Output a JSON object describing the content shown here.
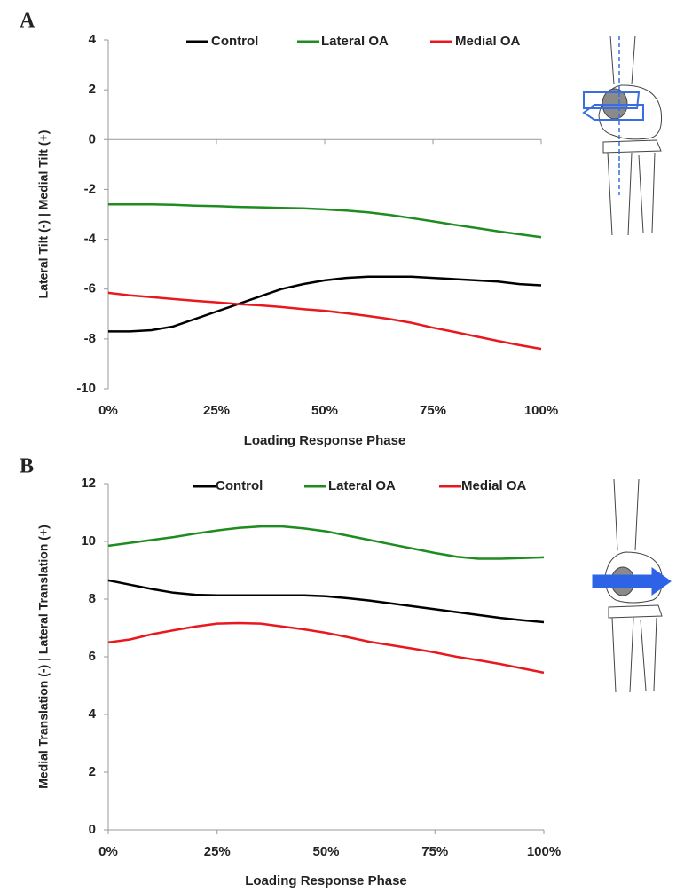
{
  "chart_data": [
    {
      "type": "line",
      "panel_label": "A",
      "x_label": "Loading Response Phase",
      "y_label": "Lateral Tilt (-) | Medial Tilt (+)",
      "x": [
        0,
        5,
        10,
        15,
        20,
        25,
        30,
        35,
        40,
        45,
        50,
        55,
        60,
        65,
        70,
        75,
        80,
        85,
        90,
        95,
        100
      ],
      "xlim": [
        0,
        100
      ],
      "xticks": [
        {
          "value": 0,
          "label": "0%"
        },
        {
          "value": 25,
          "label": "25%"
        },
        {
          "value": 50,
          "label": "50%"
        },
        {
          "value": 75,
          "label": "75%"
        },
        {
          "value": 100,
          "label": "100%"
        }
      ],
      "ylim": [
        -10,
        4
      ],
      "yticks": [
        -10,
        -8,
        -6,
        -4,
        -2,
        0,
        2,
        4
      ],
      "series": [
        {
          "name": "Control",
          "color": "#000000",
          "values": [
            -7.7,
            -7.7,
            -7.65,
            -7.5,
            -7.2,
            -6.9,
            -6.6,
            -6.3,
            -6.0,
            -5.8,
            -5.65,
            -5.55,
            -5.5,
            -5.5,
            -5.5,
            -5.55,
            -5.6,
            -5.65,
            -5.7,
            -5.8,
            -5.85
          ]
        },
        {
          "name": "Lateral OA",
          "color": "#1e8c1e",
          "values": [
            -2.6,
            -2.6,
            -2.6,
            -2.62,
            -2.65,
            -2.67,
            -2.7,
            -2.72,
            -2.74,
            -2.76,
            -2.8,
            -2.85,
            -2.92,
            -3.02,
            -3.15,
            -3.28,
            -3.42,
            -3.55,
            -3.68,
            -3.8,
            -3.92
          ]
        },
        {
          "name": "Medial OA",
          "color": "#e8191e",
          "values": [
            -6.15,
            -6.25,
            -6.32,
            -6.4,
            -6.47,
            -6.53,
            -6.6,
            -6.65,
            -6.72,
            -6.8,
            -6.87,
            -6.97,
            -7.08,
            -7.2,
            -7.35,
            -7.55,
            -7.72,
            -7.9,
            -8.08,
            -8.25,
            -8.4
          ]
        }
      ]
    },
    {
      "type": "line",
      "panel_label": "B",
      "x_label": "Loading Response Phase",
      "y_label": "Medial Translation (-) | Lateral Translation (+)",
      "x": [
        0,
        5,
        10,
        15,
        20,
        25,
        30,
        35,
        40,
        45,
        50,
        55,
        60,
        65,
        70,
        75,
        80,
        85,
        90,
        95,
        100
      ],
      "xlim": [
        0,
        100
      ],
      "xticks": [
        {
          "value": 0,
          "label": "0%"
        },
        {
          "value": 25,
          "label": "25%"
        },
        {
          "value": 50,
          "label": "50%"
        },
        {
          "value": 75,
          "label": "75%"
        },
        {
          "value": 100,
          "label": "100%"
        }
      ],
      "ylim": [
        0,
        12
      ],
      "yticks": [
        0,
        2,
        4,
        6,
        8,
        10,
        12
      ],
      "series": [
        {
          "name": "Control",
          "color": "#000000",
          "values": [
            8.65,
            8.5,
            8.35,
            8.22,
            8.15,
            8.13,
            8.13,
            8.13,
            8.13,
            8.13,
            8.1,
            8.03,
            7.95,
            7.85,
            7.75,
            7.65,
            7.55,
            7.45,
            7.35,
            7.27,
            7.2
          ]
        },
        {
          "name": "Lateral OA",
          "color": "#1e8c1e",
          "values": [
            9.85,
            9.95,
            10.05,
            10.15,
            10.27,
            10.38,
            10.47,
            10.52,
            10.52,
            10.45,
            10.35,
            10.2,
            10.05,
            9.9,
            9.75,
            9.6,
            9.47,
            9.4,
            9.4,
            9.42,
            9.45
          ]
        },
        {
          "name": "Medial OA",
          "color": "#e8191e",
          "values": [
            6.5,
            6.6,
            6.78,
            6.92,
            7.05,
            7.15,
            7.17,
            7.15,
            7.05,
            6.95,
            6.83,
            6.68,
            6.52,
            6.4,
            6.28,
            6.15,
            6.0,
            5.88,
            5.75,
            5.6,
            5.45
          ]
        }
      ]
    }
  ]
}
